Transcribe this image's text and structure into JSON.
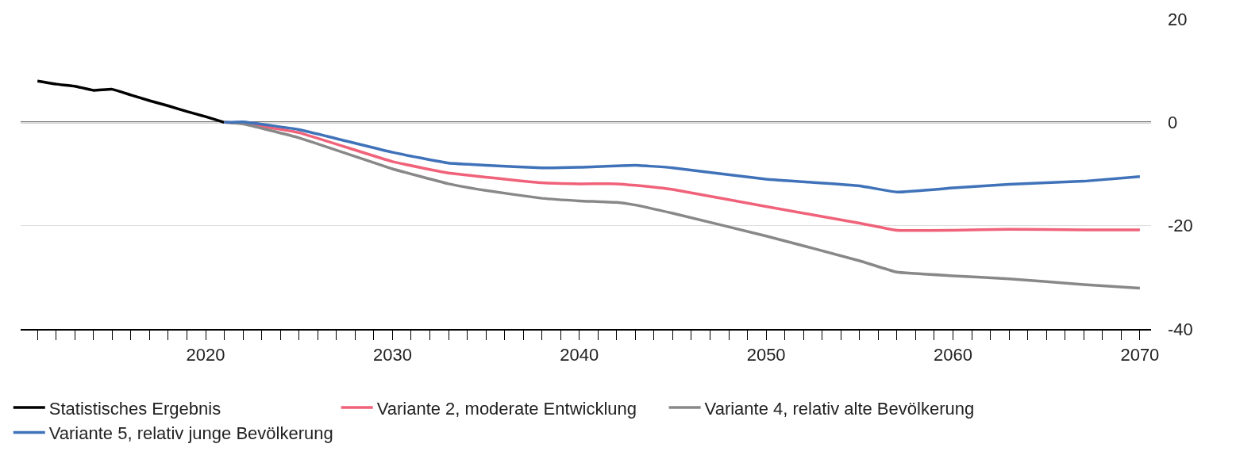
{
  "chart_data": {
    "type": "line",
    "xlim": [
      2010.1,
      2070.6
    ],
    "xticks": [
      2020,
      2030,
      2040,
      2050,
      2060,
      2070
    ],
    "ylim": [
      -40,
      20
    ],
    "yticks": [
      20,
      0,
      -20,
      -40
    ],
    "grid": "y",
    "legend": "bottom",
    "line_style": "solid",
    "ref_lines": [
      {
        "axis": "y",
        "value": 0,
        "color": "#404040"
      }
    ],
    "series": [
      {
        "name": "Statistisches Ergebnis",
        "color": "#000000",
        "x": [
          2011,
          2012,
          2013,
          2014,
          2015,
          2016,
          2017,
          2018,
          2019,
          2020,
          2021
        ],
        "values": [
          8.0,
          7.4,
          7.0,
          6.2,
          6.4,
          5.3,
          4.2,
          3.2,
          2.1,
          1.1,
          0
        ]
      },
      {
        "name": "Variante 2, moderate Entwicklung",
        "color": "#f0627a",
        "x": [
          2021,
          2022,
          2025,
          2030,
          2033,
          2035,
          2038,
          2040,
          2042,
          2043,
          2045,
          2050,
          2055,
          2057,
          2060,
          2063,
          2067,
          2070
        ],
        "values": [
          0,
          -0.2,
          -2,
          -7.6,
          -9.8,
          -10.6,
          -11.7,
          -11.9,
          -11.9,
          -12.2,
          -13,
          -16.3,
          -19.5,
          -20.9,
          -20.9,
          -20.7,
          -20.8,
          -20.8
        ]
      },
      {
        "name": "Variante 4, relativ alte Bevölkerung",
        "color": "#888888",
        "x": [
          2021,
          2022,
          2025,
          2030,
          2033,
          2035,
          2038,
          2040,
          2042,
          2043,
          2045,
          2050,
          2055,
          2057,
          2060,
          2063,
          2067,
          2070
        ],
        "values": [
          0,
          -0.3,
          -3,
          -9,
          -11.9,
          -13.2,
          -14.7,
          -15.2,
          -15.5,
          -16,
          -17.6,
          -22,
          -26.8,
          -29,
          -29.7,
          -30.3,
          -31.4,
          -32.1
        ]
      },
      {
        "name": "Variante 5, relativ junge Bevölkerung",
        "color": "#3f72b9",
        "x": [
          2021,
          2022,
          2025,
          2030,
          2033,
          2035,
          2038,
          2040,
          2043,
          2045,
          2050,
          2055,
          2057,
          2060,
          2063,
          2067,
          2070
        ],
        "values": [
          0,
          0.1,
          -1.4,
          -5.8,
          -7.9,
          -8.3,
          -8.8,
          -8.7,
          -8.3,
          -8.8,
          -11,
          -12.3,
          -13.5,
          -12.7,
          -12,
          -11.4,
          -10.5
        ]
      }
    ]
  }
}
